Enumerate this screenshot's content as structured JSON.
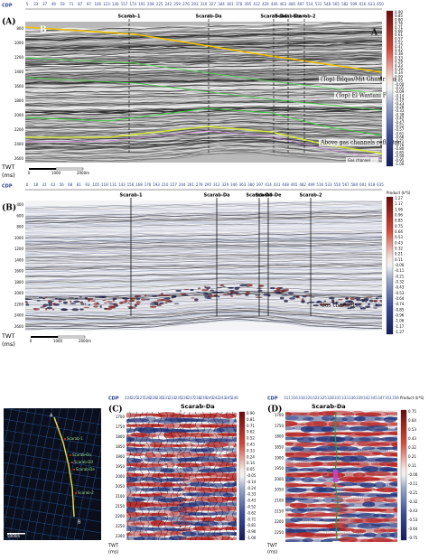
{
  "panel_a": {
    "label": "(A)",
    "axis_title": "CDP",
    "cdp_ticks": [
      "5",
      "23",
      "37",
      "49",
      "59",
      "71",
      "87",
      "97",
      "106",
      "123",
      "140",
      "157",
      "174",
      "191",
      "208",
      "225",
      "242",
      "259",
      "276",
      "293",
      "310",
      "327",
      "344",
      "361",
      "378",
      "395",
      "412",
      "429",
      "446",
      "463",
      "480",
      "497",
      "514",
      "531",
      "548",
      "565",
      "582",
      "599",
      "616",
      "633",
      "650"
    ],
    "end_left": "B",
    "end_right": "A",
    "wells": [
      "Scarab-1",
      "Scarab-Da",
      "Scarab-Dd",
      "Scarab-De",
      "Scarab-2"
    ],
    "twt_ticks": [
      "800",
      "1000",
      "1200",
      "1400",
      "1600",
      "1800",
      "2000",
      "2200",
      "2400",
      "2600"
    ],
    "twt_title": [
      "TWT",
      "(ms)"
    ],
    "annotations": [
      "(Top) Bilqas/Mit Ghamr Fm",
      "(Top) El Wastani Fm.",
      "Above gas channels reflector",
      "Gas channel"
    ],
    "scale": [
      "0",
      "1000",
      "2000m"
    ],
    "colorbar_ticks": [
      "0.90",
      "0.85",
      "0.80",
      "0.76",
      "0.71",
      "0.66",
      "0.61",
      "0.57",
      "0.52",
      "0.47",
      "0.42",
      "0.38",
      "0.33",
      "0.28",
      "0.23",
      "0.19",
      "0.14",
      "0.09",
      "0.05",
      "-0.00",
      "-0.05",
      "-0.09",
      "-0.14",
      "-0.19",
      "-0.23",
      "-0.28",
      "-0.33",
      "-0.38",
      "-0.42",
      "-0.47",
      "-0.52",
      "-0.57",
      "-0.61",
      "-0.66",
      "-0.71",
      "-0.76",
      "-0.80",
      "-0.85",
      "-0.90",
      "-0.95",
      "-1.00"
    ]
  },
  "panel_b": {
    "label": "(B)",
    "axis_title": "CDP",
    "cdp_ticks": [
      "0",
      "18",
      "31",
      "43",
      "56",
      "68",
      "81",
      "93",
      "105",
      "118",
      "131",
      "143",
      "156",
      "168",
      "176",
      "193",
      "210",
      "227",
      "244",
      "261",
      "278",
      "295",
      "312",
      "329",
      "346",
      "363",
      "380",
      "397",
      "414",
      "431",
      "448",
      "465",
      "482",
      "499",
      "516",
      "533",
      "550",
      "567",
      "584",
      "601",
      "618",
      "635"
    ],
    "wells": [
      "Scarab-1",
      "Scarab-Da",
      "Scarab-Dd",
      "Scarab-De",
      "Scarab-2"
    ],
    "twt_ticks": [
      "400",
      "600",
      "800",
      "1000",
      "1200",
      "1400",
      "1600",
      "1800",
      "2000",
      "2200",
      "2400",
      "2600"
    ],
    "twt_title": [
      "TWT",
      "(ms)"
    ],
    "annotation": "Gas channels",
    "scale": [
      "0",
      "1000",
      "2000m"
    ],
    "colorbar_title": "Product (k*S)",
    "colorbar_ticks": [
      "1.27",
      "1.17",
      "1.06",
      "0.96",
      "0.85",
      "0.75",
      "0.64",
      "0.53",
      "0.43",
      "0.32",
      "0.21",
      "0.11",
      "-0.00",
      "-0.11",
      "-0.21",
      "-0.32",
      "-0.43",
      "-0.53",
      "-0.64",
      "-0.74",
      "-0.85",
      "-0.96",
      "-1.06",
      "-1.17",
      "-1.27"
    ]
  },
  "map": {
    "ends": [
      "A",
      "B"
    ],
    "wells": [
      "Scarab-1",
      "Scarab-Da",
      "Scarab-Dd",
      "Scarab-De",
      "Scarab-2"
    ],
    "scale": "5000m"
  },
  "panel_c": {
    "label": "(C)",
    "axis_title": "CDP",
    "well": "Scarab-Da",
    "cdp_ticks": [
      "224",
      "225",
      "227",
      "228",
      "229",
      "230",
      "231",
      "233",
      "235",
      "236",
      "237",
      "238",
      "239",
      "240",
      "242",
      "243",
      "245",
      "246"
    ],
    "twt_ticks": [
      "1700",
      "1750",
      "1800",
      "1850",
      "1900",
      "1950",
      "2000",
      "2050",
      "2100",
      "2150",
      "2200",
      "2250",
      "2300"
    ],
    "twt_title": [
      "TWT",
      "(ms)"
    ],
    "colorbar_ticks": [
      "0.90",
      "0.81",
      "0.71",
      "0.62",
      "0.52",
      "0.43",
      "0.33",
      "0.24",
      "0.14",
      "0.05",
      "-0.05",
      "-0.14",
      "-0.24",
      "-0.33",
      "-0.43",
      "-0.52",
      "-0.62",
      "-0.71",
      "-0.81",
      "-0.90",
      "-1.00"
    ]
  },
  "panel_d": {
    "label": "(D)",
    "axis_title": "CDP",
    "well": "Scarab-Da",
    "cdp_ticks": [
      "311",
      "316",
      "318",
      "320",
      "322",
      "325",
      "328",
      "331",
      "333",
      "336",
      "339",
      "342",
      "345",
      "347",
      "351",
      "356"
    ],
    "twt_ticks": [
      "1700",
      "1750",
      "1800",
      "1850",
      "1900",
      "1950",
      "2000",
      "2050",
      "2100",
      "2150",
      "2200",
      "2250"
    ],
    "twt_title": [
      "TWT",
      "(ms)"
    ],
    "colorbar_title": "Product (k*S)",
    "colorbar_ticks": [
      "0.75",
      "0.64",
      "0.53",
      "0.43",
      "0.32",
      "0.21",
      "0.11",
      "-0.00",
      "-0.11",
      "-0.21",
      "-0.32",
      "-0.43",
      "-0.53",
      "-0.64",
      "-0.75"
    ]
  }
}
